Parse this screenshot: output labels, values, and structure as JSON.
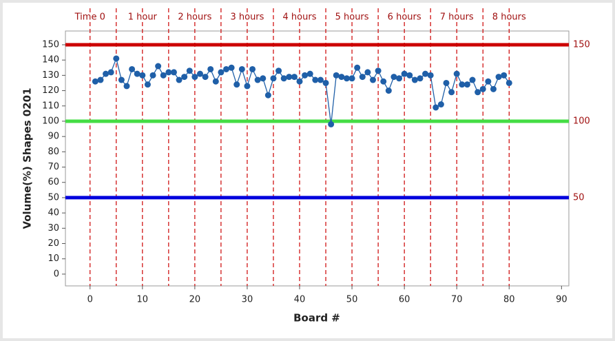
{
  "chart_data": {
    "type": "line",
    "y_label": "Volume(%) Shapes 0201",
    "x_label": "Board #",
    "x": [
      1,
      2,
      3,
      4,
      5,
      6,
      7,
      8,
      9,
      10,
      11,
      12,
      13,
      14,
      15,
      16,
      17,
      18,
      19,
      20,
      21,
      22,
      23,
      24,
      25,
      26,
      27,
      28,
      29,
      30,
      31,
      32,
      33,
      34,
      35,
      36,
      37,
      38,
      39,
      40,
      41,
      42,
      43,
      44,
      45,
      46,
      47,
      48,
      49,
      50,
      51,
      52,
      53,
      54,
      55,
      56,
      57,
      58,
      59,
      60,
      61,
      62,
      63,
      64,
      65,
      66,
      67,
      68,
      69,
      70,
      71,
      72,
      73,
      74,
      75,
      76,
      77,
      78,
      79,
      80
    ],
    "series": [
      {
        "color": "#1f5fa8",
        "values": [
          126,
          127,
          131,
          132,
          141,
          127,
          123,
          134,
          131,
          130,
          124,
          130,
          136,
          130,
          132,
          132,
          127,
          129,
          133,
          129,
          131,
          129,
          134,
          126,
          132,
          134,
          135,
          124,
          134,
          123,
          134,
          127,
          128,
          117,
          128,
          133,
          128,
          129,
          129,
          126,
          130,
          131,
          127,
          127,
          125,
          98,
          130,
          129,
          128,
          128,
          135,
          129,
          132,
          127,
          133,
          126,
          120,
          129,
          128,
          131,
          130,
          127,
          128,
          131,
          130,
          109,
          111,
          125,
          119,
          131,
          124,
          124,
          127,
          119,
          121,
          126,
          121,
          129,
          130,
          125
        ]
      }
    ],
    "xlim": [
      -4.7,
      91.4
    ],
    "ylim": [
      -7.7,
      159
    ],
    "xticks": [
      0,
      10,
      20,
      30,
      40,
      50,
      60,
      70,
      80,
      90
    ],
    "yticks": [
      0,
      10,
      20,
      30,
      40,
      50,
      60,
      70,
      80,
      90,
      100,
      110,
      120,
      130,
      140,
      150
    ],
    "reference_lines": [
      {
        "value": 150,
        "color": "#cc0000"
      },
      {
        "value": 100,
        "color": "#44dd44"
      },
      {
        "value": 50,
        "color": "#0000dd"
      }
    ],
    "time_lines": {
      "color": "#cc0000",
      "x": [
        0,
        5,
        10,
        15,
        20,
        25,
        30,
        35,
        40,
        45,
        50,
        55,
        60,
        65,
        70,
        75,
        80
      ]
    },
    "time_labels": [
      {
        "x": 0,
        "label": "Time 0"
      },
      {
        "x": 10,
        "label": "1 hour"
      },
      {
        "x": 20,
        "label": "2 hours"
      },
      {
        "x": 30,
        "label": "3 hours"
      },
      {
        "x": 40,
        "label": "4 hours"
      },
      {
        "x": 50,
        "label": "5 hours"
      },
      {
        "x": 60,
        "label": "6 hours"
      },
      {
        "x": 70,
        "label": "7 hours"
      },
      {
        "x": 80,
        "label": "8 hours"
      }
    ]
  }
}
